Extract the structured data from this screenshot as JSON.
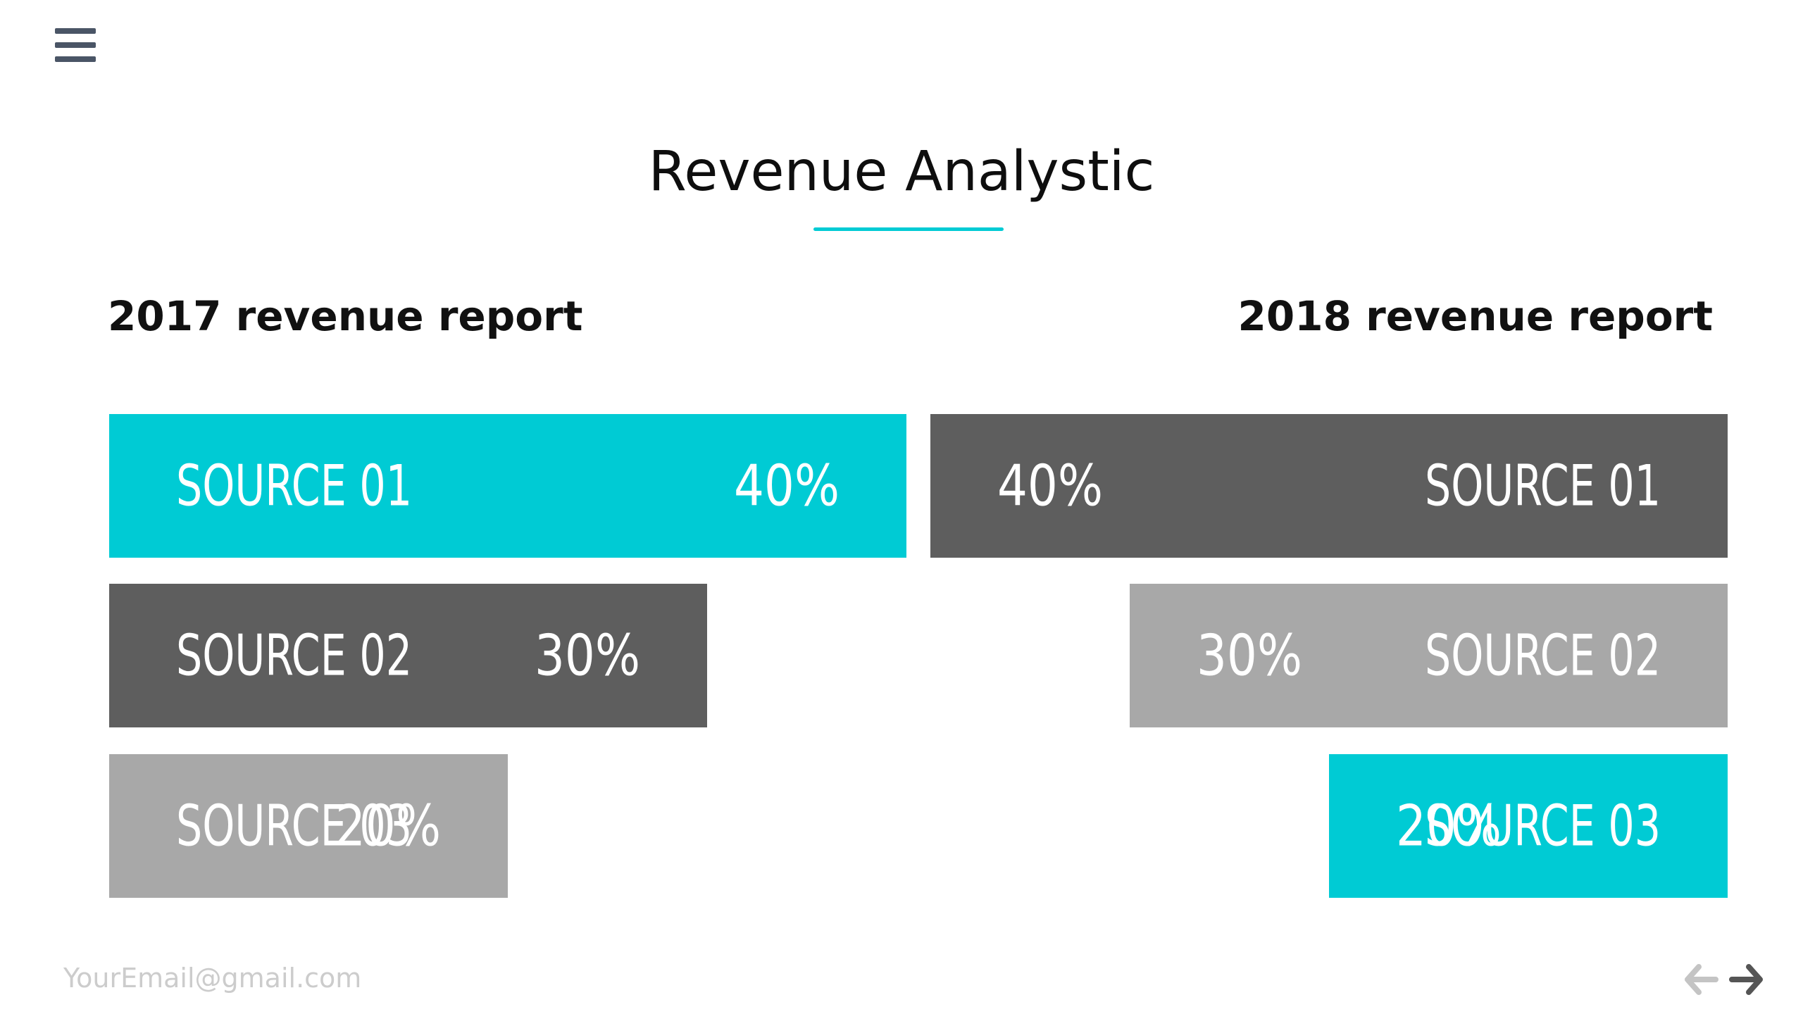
{
  "menu": {
    "icon": "hamburger-menu-icon"
  },
  "title": "Revenue Analystic",
  "colors": {
    "accent": "#00cbd4",
    "dark": "#5e5e5e",
    "light": "#a8a8a8",
    "menu": "#4a5566",
    "nav_prev": "#c4c4c4",
    "nav_next": "#555555"
  },
  "chart_data": [
    {
      "type": "bar",
      "orientation": "horizontal",
      "title": "2017 revenue report",
      "categories": [
        "SOURCE 01",
        "SOURCE 02",
        "SOURCE 03"
      ],
      "values": [
        40,
        30,
        20
      ],
      "value_labels": [
        "40%",
        "30%",
        "20%"
      ],
      "bar_colors": [
        "#00cbd4",
        "#5e5e5e",
        "#a8a8a8"
      ],
      "direction": "left-to-right"
    },
    {
      "type": "bar",
      "orientation": "horizontal",
      "title": "2018 revenue report",
      "categories": [
        "SOURCE 01",
        "SOURCE 02",
        "SOURCE 03"
      ],
      "values": [
        40,
        30,
        20
      ],
      "value_labels": [
        "40%",
        "30%",
        "20%"
      ],
      "bar_colors": [
        "#5e5e5e",
        "#a8a8a8",
        "#00cbd4"
      ],
      "direction": "right-to-left"
    }
  ],
  "footer": {
    "email": "YourEmail@gmail.com",
    "prev_icon": "arrow-left-icon",
    "next_icon": "arrow-right-icon"
  }
}
